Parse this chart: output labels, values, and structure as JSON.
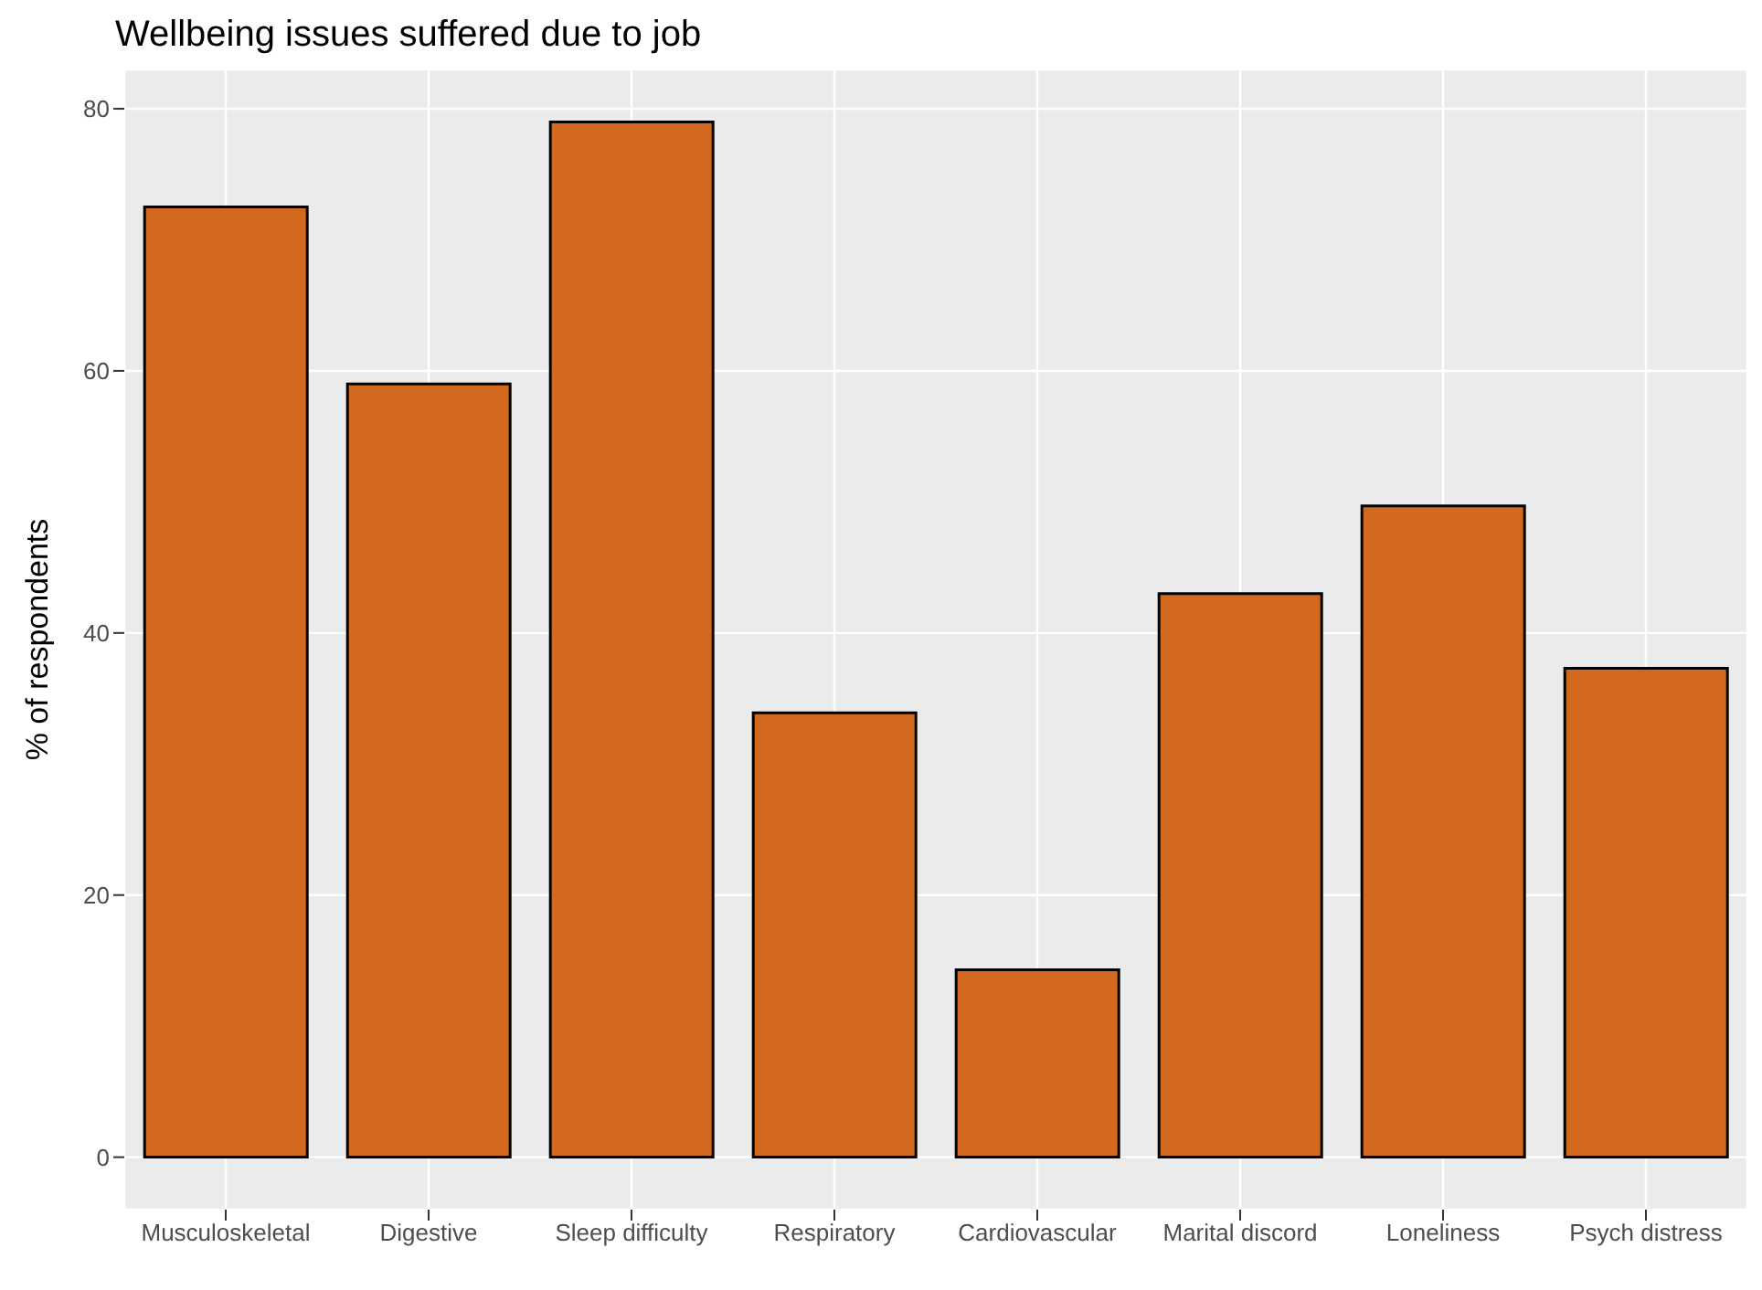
{
  "chart_data": {
    "type": "bar",
    "title": "Wellbeing issues suffered due to job",
    "ylabel": "% of respondents",
    "categories": [
      "Musculoskeletal",
      "Digestive",
      "Sleep difficulty",
      "Respiratory",
      "Cardiovascular",
      "Marital discord",
      "Loneliness",
      "Psych distress"
    ],
    "values": [
      72.5,
      59,
      79,
      33.9,
      14.3,
      43,
      49.7,
      37.3
    ],
    "color": "#d2691e",
    "ylim": [
      -4,
      83
    ],
    "yticks": [
      0,
      20,
      40,
      60,
      80
    ],
    "grid": true
  }
}
